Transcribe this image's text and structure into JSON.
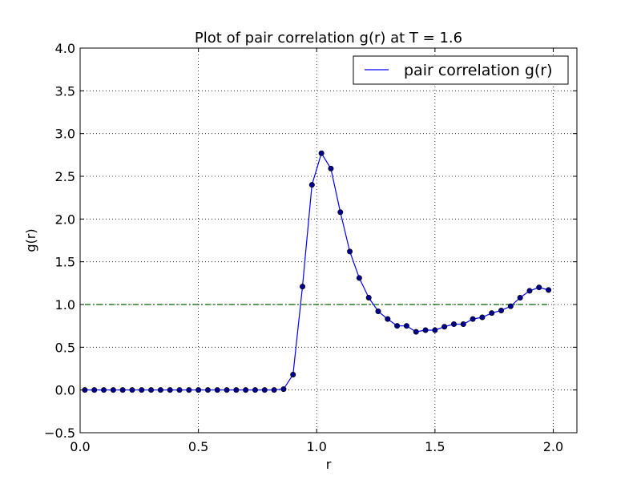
{
  "chart_data": {
    "type": "line",
    "title": "Plot of pair correlation g(r) at T = 1.6",
    "xlabel": "r",
    "ylabel": "g(r)",
    "xlim": [
      0.0,
      2.1
    ],
    "ylim": [
      -0.5,
      4.0
    ],
    "grid": true,
    "legend_position": "top-right",
    "x_ticks": [
      "0.0",
      "0.5",
      "1.0",
      "1.5",
      "2.0"
    ],
    "y_ticks": [
      "−0.5",
      "0.0",
      "0.5",
      "1.0",
      "1.5",
      "2.0",
      "2.5",
      "3.0",
      "3.5",
      "4.0"
    ],
    "x_tick_values": [
      0.0,
      0.5,
      1.0,
      1.5,
      2.0
    ],
    "y_tick_values": [
      -0.5,
      0.0,
      0.5,
      1.0,
      1.5,
      2.0,
      2.5,
      3.0,
      3.5,
      4.0
    ],
    "series": [
      {
        "name": "pair correlation g(r)",
        "color": "#0000ff",
        "marker_color": "#00008b",
        "x": [
          0.02,
          0.06,
          0.1,
          0.14,
          0.18,
          0.22,
          0.26,
          0.3,
          0.34,
          0.38,
          0.42,
          0.46,
          0.5,
          0.54,
          0.58,
          0.62,
          0.66,
          0.7,
          0.74,
          0.78,
          0.82,
          0.86,
          0.9,
          0.94,
          0.98,
          1.02,
          1.06,
          1.1,
          1.14,
          1.18,
          1.22,
          1.26,
          1.3,
          1.34,
          1.38,
          1.42,
          1.46,
          1.5,
          1.54,
          1.58,
          1.62,
          1.66,
          1.7,
          1.74,
          1.78,
          1.82,
          1.86,
          1.9,
          1.94,
          1.98
        ],
        "y": [
          0.0,
          0.0,
          0.0,
          0.0,
          0.0,
          0.0,
          0.0,
          0.0,
          0.0,
          0.0,
          0.0,
          0.0,
          0.0,
          0.0,
          0.0,
          0.0,
          0.0,
          0.0,
          0.0,
          0.0,
          0.0,
          0.01,
          0.18,
          1.21,
          2.4,
          2.77,
          2.59,
          2.08,
          1.62,
          1.31,
          1.08,
          0.92,
          0.83,
          0.75,
          0.75,
          0.68,
          0.7,
          0.7,
          0.74,
          0.77,
          0.77,
          0.83,
          0.85,
          0.9,
          0.93,
          0.98,
          1.08,
          1.16,
          1.2,
          1.17
        ]
      }
    ],
    "reference_line": {
      "y": 1.0,
      "x_range": [
        0.02,
        1.98
      ],
      "color": "#006400",
      "style": "dash-dot"
    }
  }
}
